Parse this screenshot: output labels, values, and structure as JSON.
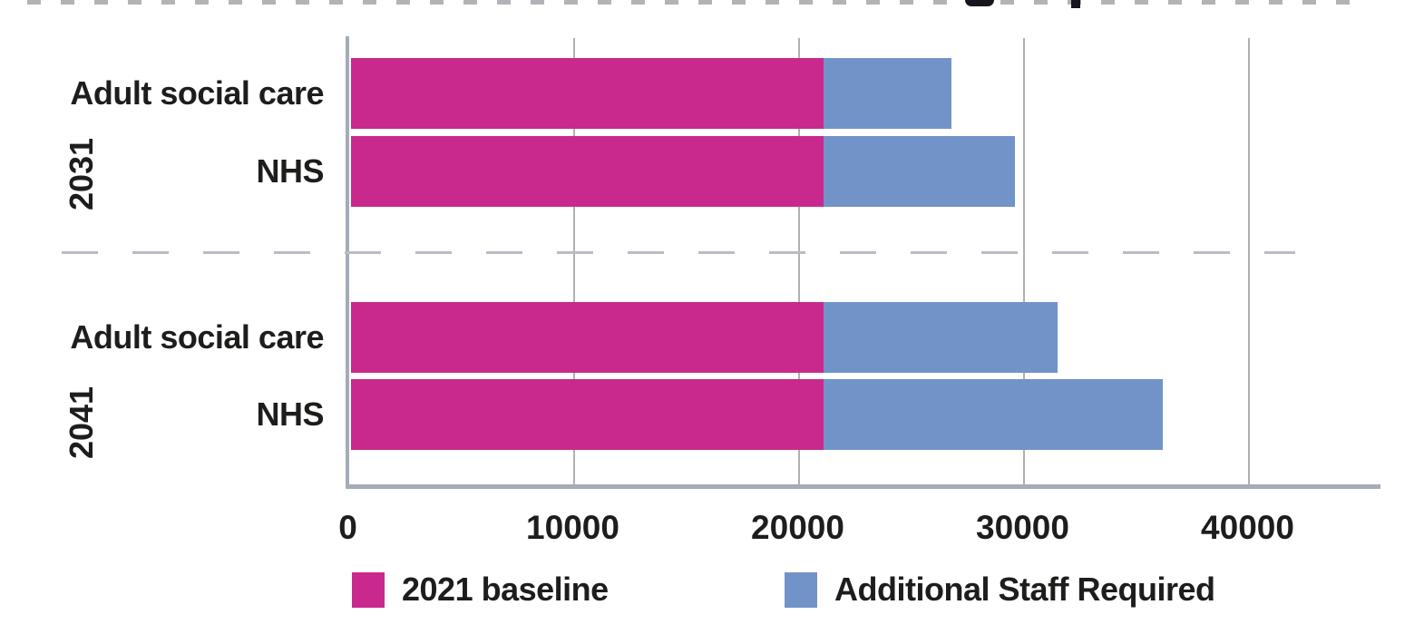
{
  "chart_data": {
    "type": "bar",
    "orientation": "horizontal",
    "stacked": true,
    "xlabel": "",
    "ylabel": "",
    "xticks": [
      0,
      10000,
      20000,
      30000,
      40000
    ],
    "xtick_labels": [
      "0",
      "10000",
      "20000",
      "30000",
      "40000"
    ],
    "xlim": [
      0,
      45800
    ],
    "grid": "vertical-gridlines",
    "legend_position": "bottom",
    "groups": [
      {
        "label": "2031"
      },
      {
        "label": "2041"
      }
    ],
    "rows": [
      {
        "group": "2031",
        "category": "Adult social care",
        "baseline": 21000,
        "additional": 5700,
        "total": 26700
      },
      {
        "group": "2031",
        "category": "NHS",
        "baseline": 21000,
        "additional": 8500,
        "total": 29500
      },
      {
        "group": "2041",
        "category": "Adult social care",
        "baseline": 21000,
        "additional": 10400,
        "total": 31400
      },
      {
        "group": "2041",
        "category": "NHS",
        "baseline": 21000,
        "additional": 15100,
        "total": 36100
      }
    ],
    "series": [
      {
        "name": "2021 baseline",
        "color": "#c9298c"
      },
      {
        "name": "Additional Staff Required",
        "color": "#7193c8"
      }
    ],
    "colors": {
      "axis": "#a6abb8",
      "gridline": "#b0b0b0",
      "separator": "#b9bcc4",
      "text": "#1d1d1b",
      "background": "#ffffff"
    }
  }
}
